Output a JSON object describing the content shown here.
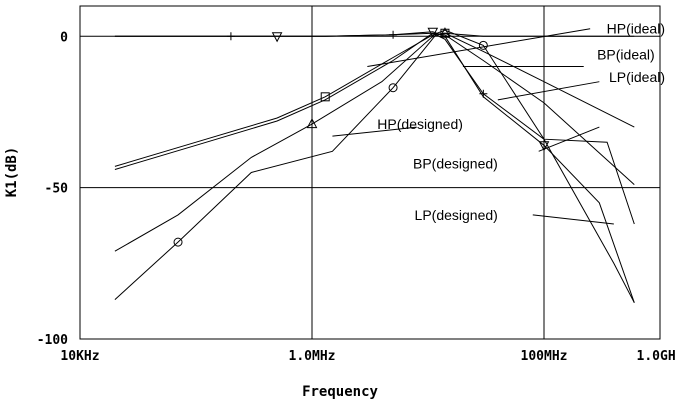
{
  "chart_data": {
    "type": "line",
    "title": "",
    "xlabel": "Frequency",
    "ylabel": "K1(dB)",
    "x_scale": "log",
    "xlim": [
      10000,
      1000000000
    ],
    "ylim": [
      -100,
      10
    ],
    "grid": true,
    "x_ticks": [
      {
        "value": 10000,
        "label": "10KHz"
      },
      {
        "value": 1000000,
        "label": "1.0MHz"
      },
      {
        "value": 100000000,
        "label": "100MHz"
      },
      {
        "value": 1000000000,
        "label": "1.0GHz"
      }
    ],
    "y_ticks": [
      {
        "value": 0,
        "label": "0"
      },
      {
        "value": -50,
        "label": "-50"
      },
      {
        "value": -100,
        "label": "-100"
      }
    ],
    "series": [
      {
        "name": "HP(ideal)",
        "marker": "square",
        "x": [
          20000,
          100000,
          500000,
          1300000,
          5000000,
          11000000,
          14000000,
          30000000,
          100000000,
          600000000
        ],
        "y": [
          -43,
          -35,
          -27,
          -20,
          -7,
          0.5,
          1,
          -5,
          -15,
          -30
        ]
      },
      {
        "name": "BP(ideal)",
        "marker": "none",
        "x": [
          20000,
          100000,
          500000,
          1300000,
          5000000,
          11000000,
          14000000,
          30000000,
          100000000,
          600000000
        ],
        "y": [
          -44,
          -36,
          -28,
          -21,
          -8,
          1,
          0.5,
          -8,
          -22,
          -49
        ]
      },
      {
        "name": "LP(ideal)",
        "marker": "plus",
        "x": [
          20000,
          100000,
          200000,
          500000,
          1300000,
          5000000,
          11000000,
          14000000,
          30000000,
          100000000,
          400000000,
          600000000
        ],
        "y": [
          0,
          0,
          0,
          0,
          0,
          0.5,
          1,
          -1,
          -19,
          -34,
          -75,
          -88
        ]
      },
      {
        "name": "HP(designed)",
        "marker": "triangle-up",
        "x": [
          20000,
          70000,
          300000,
          1000000,
          4000000,
          11000000,
          14000000,
          30000000,
          120000000,
          600000000
        ],
        "y": [
          -71,
          -59,
          -40,
          -29,
          -15,
          0,
          1,
          0,
          0,
          0
        ]
      },
      {
        "name": "BP(designed)",
        "marker": "circle",
        "x": [
          20000,
          70000,
          300000,
          1500000,
          5000000,
          12000000,
          14000000,
          30000000,
          100000000,
          350000000,
          600000000
        ],
        "y": [
          -87,
          -68,
          -45,
          -38,
          -17,
          1,
          2,
          -3,
          -34,
          -35,
          -62
        ]
      },
      {
        "name": "LP(designed)",
        "marker": "triangle-down",
        "x": [
          20000,
          150000,
          500000,
          1300000,
          5000000,
          11000000,
          14000000,
          30000000,
          100000000,
          300000000,
          600000000
        ],
        "y": [
          0,
          0,
          0,
          0,
          0.5,
          1.5,
          0,
          -20,
          -36,
          -55,
          -88
        ]
      }
    ],
    "annotations": [
      {
        "text": "HP(ideal)",
        "tx": 1500000000,
        "ty": 2.5,
        "lx1": 250000000,
        "ly1": 2.5,
        "lx2": 3000000,
        "ly2": -10
      },
      {
        "text": "BP(ideal)",
        "tx": 900000000,
        "ty": -6,
        "lx1": 220000000,
        "ly1": -10,
        "lx2": 20000000,
        "ly2": -10
      },
      {
        "text": "LP(ideal)",
        "tx": 1200000000,
        "ty": -13.5,
        "lx1": 300000000,
        "ly1": -15,
        "lx2": 40000000,
        "ly2": -21
      },
      {
        "text": "HP(designed)",
        "tx": 20000000,
        "ty": -29,
        "lx1": 8000000,
        "ly1": -30,
        "lx2": 1500000,
        "ly2": -33
      },
      {
        "text": "BP(designed)",
        "tx": 40000000,
        "ty": -42,
        "lx1": 90000000,
        "ly1": -38,
        "lx2": 300000000,
        "ly2": -30
      },
      {
        "text": "LP(designed)",
        "tx": 40000000,
        "ty": -59,
        "lx1": 80000000,
        "ly1": -59,
        "lx2": 400000000,
        "ly2": -62
      }
    ]
  }
}
